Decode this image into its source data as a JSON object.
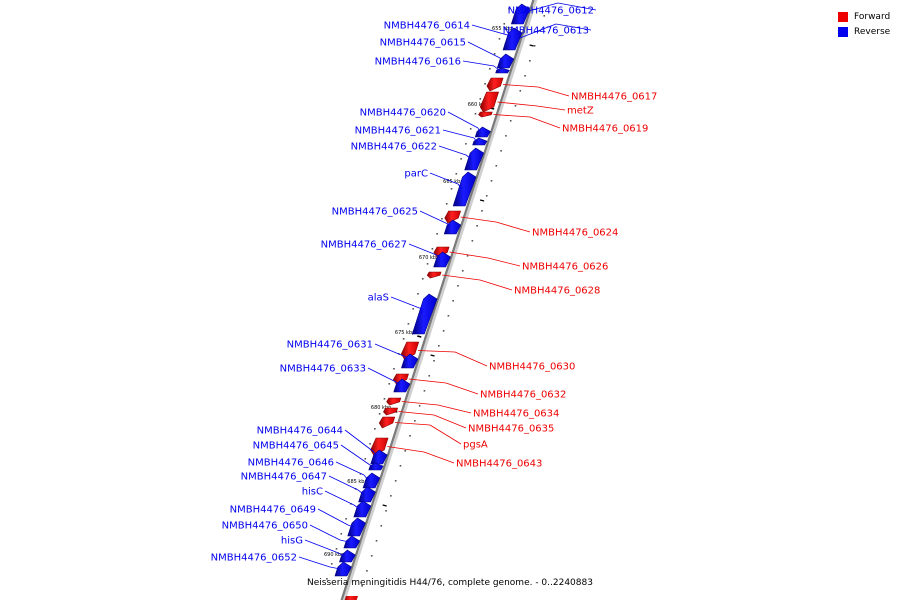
{
  "caption": "Neisseria meningitidis H44/76, complete genome. - 0..2240883",
  "legend": {
    "forward": {
      "label": "Forward",
      "color": "#ee0000"
    },
    "reverse": {
      "label": "Reverse",
      "color": "#0000ee"
    }
  },
  "ticks": [
    "655 kbp",
    "660 kbp",
    "665 kbp",
    "670 kbp",
    "675 kbp",
    "680 kbp",
    "685 kbp",
    "690 kbp"
  ],
  "genes": [
    {
      "name": "NMBH4476_0612",
      "strand": "reverse"
    },
    {
      "name": "NMBH4476_0613",
      "strand": "reverse"
    },
    {
      "name": "NMBH4476_0614",
      "strand": "reverse"
    },
    {
      "name": "NMBH4476_0615",
      "strand": "reverse"
    },
    {
      "name": "NMBH4476_0616",
      "strand": "reverse"
    },
    {
      "name": "NMBH4476_0617",
      "strand": "forward"
    },
    {
      "name": "metZ",
      "strand": "forward"
    },
    {
      "name": "NMBH4476_0619",
      "strand": "forward"
    },
    {
      "name": "NMBH4476_0620",
      "strand": "reverse"
    },
    {
      "name": "NMBH4476_0621",
      "strand": "reverse"
    },
    {
      "name": "NMBH4476_0622",
      "strand": "reverse"
    },
    {
      "name": "parC",
      "strand": "reverse"
    },
    {
      "name": "NMBH4476_0624",
      "strand": "forward"
    },
    {
      "name": "NMBH4476_0625",
      "strand": "reverse"
    },
    {
      "name": "NMBH4476_0626",
      "strand": "forward"
    },
    {
      "name": "NMBH4476_0627",
      "strand": "reverse"
    },
    {
      "name": "NMBH4476_0628",
      "strand": "forward"
    },
    {
      "name": "alaS",
      "strand": "reverse"
    },
    {
      "name": "NMBH4476_0630",
      "strand": "forward"
    },
    {
      "name": "NMBH4476_0631",
      "strand": "reverse"
    },
    {
      "name": "NMBH4476_0632",
      "strand": "forward"
    },
    {
      "name": "NMBH4476_0633",
      "strand": "reverse"
    },
    {
      "name": "NMBH4476_0634",
      "strand": "forward"
    },
    {
      "name": "NMBH4476_0635",
      "strand": "forward"
    },
    {
      "name": "pgsA",
      "strand": "forward"
    },
    {
      "name": "NMBH4476_0643",
      "strand": "forward"
    },
    {
      "name": "NMBH4476_0644",
      "strand": "reverse"
    },
    {
      "name": "NMBH4476_0645",
      "strand": "reverse"
    },
    {
      "name": "NMBH4476_0646",
      "strand": "reverse"
    },
    {
      "name": "NMBH4476_0647",
      "strand": "reverse"
    },
    {
      "name": "hisC",
      "strand": "reverse"
    },
    {
      "name": "NMBH4476_0649",
      "strand": "reverse"
    },
    {
      "name": "NMBH4476_0650",
      "strand": "reverse"
    },
    {
      "name": "hisG",
      "strand": "reverse"
    },
    {
      "name": "NMBH4476_0652",
      "strand": "reverse"
    }
  ]
}
